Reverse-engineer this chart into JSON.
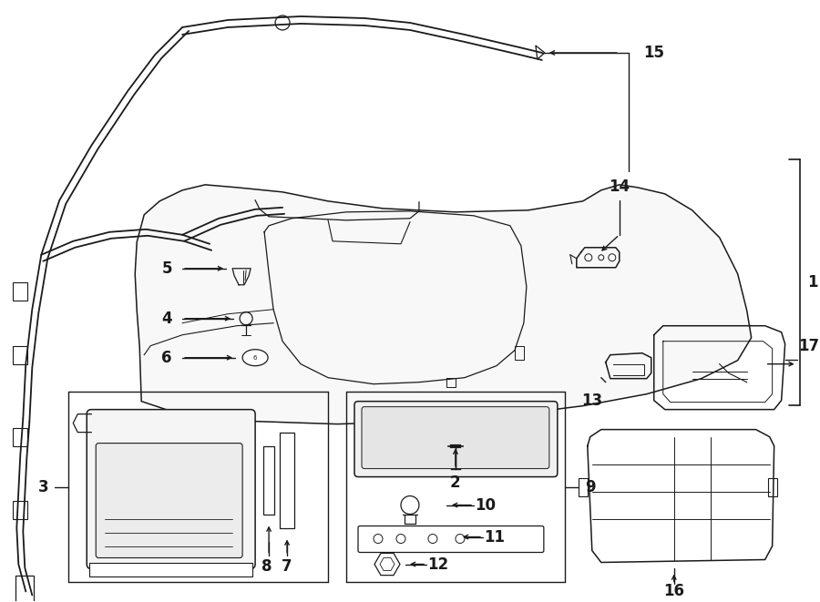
{
  "bg_color": "#ffffff",
  "lc": "#1a1a1a",
  "fig_w": 9.0,
  "fig_h": 6.61,
  "dpi": 100,
  "wire_lw": 1.3,
  "part_lw": 1.1,
  "callout_fs": 12
}
